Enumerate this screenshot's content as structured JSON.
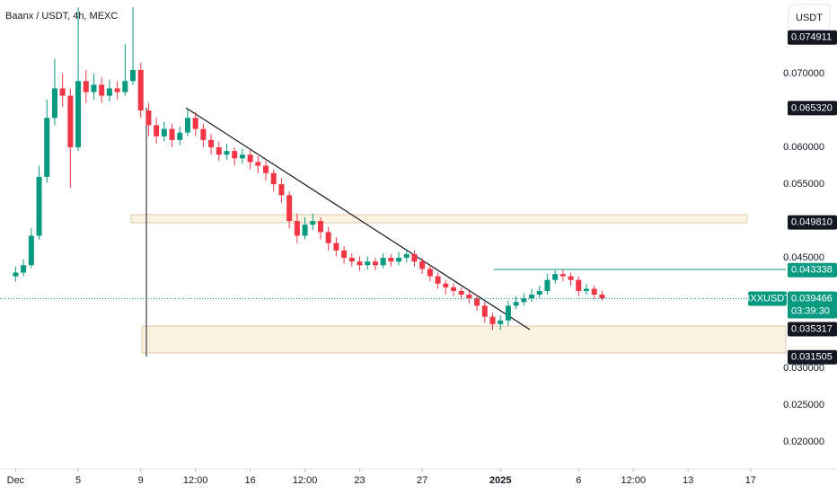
{
  "chart_data": {
    "type": "candlestick",
    "title": "Baanx / USDT, 4h, MEXC",
    "currency_button": "USDT",
    "up_color": "#089981",
    "down_color": "#f23645",
    "x": [
      "2024-12-01T00:00",
      "2024-12-01T12:00",
      "2024-12-02T00:00",
      "2024-12-02T12:00",
      "2024-12-03T00:00",
      "2024-12-03T12:00",
      "2024-12-04T00:00",
      "2024-12-04T12:00",
      "2024-12-05T00:00",
      "2024-12-05T12:00",
      "2024-12-06T00:00",
      "2024-12-06T12:00",
      "2024-12-07T00:00",
      "2024-12-07T12:00",
      "2024-12-08T00:00",
      "2024-12-08T12:00",
      "2024-12-09T00:00",
      "2024-12-09T12:00",
      "2024-12-10T00:00",
      "2024-12-10T12:00",
      "2024-12-11T00:00",
      "2024-12-11T12:00",
      "2024-12-12T00:00",
      "2024-12-12T12:00",
      "2024-12-13T00:00",
      "2024-12-13T12:00",
      "2024-12-14T00:00",
      "2024-12-14T12:00",
      "2024-12-15T00:00",
      "2024-12-15T12:00",
      "2024-12-16T00:00",
      "2024-12-16T12:00",
      "2024-12-17T00:00",
      "2024-12-17T12:00",
      "2024-12-18T00:00",
      "2024-12-18T12:00",
      "2024-12-19T00:00",
      "2024-12-19T12:00",
      "2024-12-20T00:00",
      "2024-12-20T12:00",
      "2024-12-21T00:00",
      "2024-12-21T12:00",
      "2024-12-22T00:00",
      "2024-12-22T12:00",
      "2024-12-23T00:00",
      "2024-12-23T12:00",
      "2024-12-24T00:00",
      "2024-12-24T12:00",
      "2024-12-25T00:00",
      "2024-12-25T12:00",
      "2024-12-26T00:00",
      "2024-12-26T12:00",
      "2024-12-27T00:00",
      "2024-12-27T12:00",
      "2024-12-28T00:00",
      "2024-12-28T12:00",
      "2024-12-29T00:00",
      "2024-12-29T12:00",
      "2024-12-30T00:00",
      "2024-12-30T12:00",
      "2024-12-31T00:00",
      "2024-12-31T12:00",
      "2025-01-01T00:00",
      "2025-01-01T12:00",
      "2025-01-02T00:00",
      "2025-01-02T12:00",
      "2025-01-03T00:00",
      "2025-01-03T12:00",
      "2025-01-04T00:00",
      "2025-01-04T12:00",
      "2025-01-05T00:00",
      "2025-01-05T12:00",
      "2025-01-06T00:00",
      "2025-01-06T12:00",
      "2025-01-07T00:00",
      "2025-01-07T12:00"
    ],
    "open": [
      0.0425,
      0.043,
      0.044,
      0.048,
      0.056,
      0.064,
      0.068,
      0.067,
      0.06,
      0.069,
      0.0675,
      0.0685,
      0.067,
      0.068,
      0.0675,
      0.069,
      0.0705,
      0.065,
      0.063,
      0.0615,
      0.0625,
      0.061,
      0.062,
      0.064,
      0.0625,
      0.061,
      0.06,
      0.059,
      0.0595,
      0.0585,
      0.059,
      0.058,
      0.0575,
      0.0565,
      0.055,
      0.0535,
      0.05,
      0.048,
      0.0495,
      0.05,
      0.0485,
      0.047,
      0.046,
      0.045,
      0.0445,
      0.044,
      0.0445,
      0.044,
      0.045,
      0.0445,
      0.045,
      0.0455,
      0.0445,
      0.0435,
      0.0425,
      0.0415,
      0.041,
      0.0405,
      0.04,
      0.0395,
      0.0385,
      0.037,
      0.036,
      0.0365,
      0.0385,
      0.039,
      0.0395,
      0.04,
      0.0405,
      0.042,
      0.0428,
      0.0425,
      0.042,
      0.0405,
      0.0408,
      0.04
    ],
    "high": [
      0.0438,
      0.0448,
      0.049,
      0.0575,
      0.0665,
      0.072,
      0.07,
      0.068,
      0.079,
      0.0705,
      0.07,
      0.0695,
      0.0692,
      0.069,
      0.074,
      0.079,
      0.0715,
      0.066,
      0.064,
      0.0635,
      0.0632,
      0.0628,
      0.0652,
      0.0648,
      0.0632,
      0.0618,
      0.0608,
      0.0605,
      0.06,
      0.0598,
      0.0596,
      0.0588,
      0.0582,
      0.057,
      0.0558,
      0.054,
      0.051,
      0.0505,
      0.051,
      0.0505,
      0.0492,
      0.0478,
      0.0466,
      0.0456,
      0.0452,
      0.0452,
      0.045,
      0.0456,
      0.0455,
      0.0458,
      0.0462,
      0.046,
      0.045,
      0.044,
      0.043,
      0.042,
      0.0415,
      0.041,
      0.0405,
      0.04,
      0.039,
      0.0375,
      0.0372,
      0.0392,
      0.0398,
      0.0402,
      0.0408,
      0.0412,
      0.0428,
      0.0433,
      0.0434,
      0.043,
      0.0425,
      0.0415,
      0.0412,
      0.0405
    ],
    "low": [
      0.0418,
      0.0425,
      0.0436,
      0.0475,
      0.0552,
      0.063,
      0.0655,
      0.0545,
      0.0595,
      0.066,
      0.0665,
      0.066,
      0.0662,
      0.0665,
      0.067,
      0.0685,
      0.064,
      0.0615,
      0.0605,
      0.0608,
      0.06,
      0.0603,
      0.0615,
      0.0615,
      0.06,
      0.059,
      0.0582,
      0.0583,
      0.0575,
      0.0578,
      0.057,
      0.0565,
      0.0555,
      0.054,
      0.0525,
      0.049,
      0.047,
      0.0475,
      0.0488,
      0.0475,
      0.046,
      0.0452,
      0.0442,
      0.0438,
      0.0432,
      0.0434,
      0.0433,
      0.0436,
      0.0438,
      0.044,
      0.0444,
      0.0438,
      0.0428,
      0.0418,
      0.0408,
      0.04,
      0.0398,
      0.0393,
      0.0388,
      0.0378,
      0.0362,
      0.0352,
      0.0352,
      0.0358,
      0.038,
      0.0385,
      0.039,
      0.0396,
      0.04,
      0.0415,
      0.0418,
      0.0412,
      0.0398,
      0.04,
      0.0394,
      0.0392
    ],
    "close": [
      0.043,
      0.044,
      0.048,
      0.056,
      0.064,
      0.068,
      0.067,
      0.06,
      0.069,
      0.0675,
      0.0685,
      0.067,
      0.068,
      0.0675,
      0.069,
      0.0705,
      0.065,
      0.063,
      0.0615,
      0.0625,
      0.061,
      0.062,
      0.064,
      0.0625,
      0.061,
      0.06,
      0.059,
      0.0595,
      0.0585,
      0.059,
      0.058,
      0.0575,
      0.0565,
      0.055,
      0.0535,
      0.05,
      0.048,
      0.0495,
      0.05,
      0.0485,
      0.047,
      0.046,
      0.045,
      0.0445,
      0.044,
      0.0445,
      0.044,
      0.045,
      0.0445,
      0.045,
      0.0455,
      0.0445,
      0.0435,
      0.0425,
      0.0415,
      0.041,
      0.0405,
      0.04,
      0.0395,
      0.0385,
      0.037,
      0.036,
      0.0365,
      0.0385,
      0.039,
      0.0395,
      0.04,
      0.0405,
      0.042,
      0.0428,
      0.0425,
      0.042,
      0.0405,
      0.0408,
      0.04,
      0.0395
    ],
    "xlim": [
      "2024-11-30T00:00",
      "2025-01-19T06:00"
    ],
    "xticks": [
      {
        "value": "2024-12-01T00:00",
        "label": "Dec"
      },
      {
        "value": "2024-12-05T00:00",
        "label": "5"
      },
      {
        "value": "2024-12-09T00:00",
        "label": "9"
      },
      {
        "value": "2024-12-12T12:00",
        "label": "12:00"
      },
      {
        "value": "2024-12-16T00:00",
        "label": "16"
      },
      {
        "value": "2024-12-19T12:00",
        "label": "12:00"
      },
      {
        "value": "2024-12-23T00:00",
        "label": "23"
      },
      {
        "value": "2024-12-27T00:00",
        "label": "27"
      },
      {
        "value": "2025-01-01T00:00",
        "label": "2025"
      },
      {
        "value": "2025-01-06T00:00",
        "label": "6"
      },
      {
        "value": "2025-01-09T12:00",
        "label": "12:00"
      },
      {
        "value": "2025-01-13T00:00",
        "label": "13"
      },
      {
        "value": "2025-01-17T00:00",
        "label": "17"
      }
    ],
    "ylim": [
      0.0166,
      0.08
    ],
    "yticks": [
      {
        "value": 0.07,
        "label": "0.070000"
      },
      {
        "value": 0.06,
        "label": "0.060000"
      },
      {
        "value": 0.055,
        "label": "0.055000"
      },
      {
        "value": 0.045,
        "label": "0.045000"
      },
      {
        "value": 0.03,
        "label": "0.030000"
      },
      {
        "value": 0.025,
        "label": "0.025000"
      },
      {
        "value": 0.02,
        "label": "0.020000"
      }
    ],
    "price_labels": [
      {
        "value": 0.074911,
        "label": "0.074911",
        "color": "#131722"
      },
      {
        "value": 0.06532,
        "label": "0.065320",
        "color": "#131722"
      },
      {
        "value": 0.04981,
        "label": "0.049810",
        "color": "#131722"
      },
      {
        "value": 0.043338,
        "label": "0.043338",
        "color": "#089981"
      },
      {
        "value": 0.035317,
        "label": "0.035317",
        "color": "#131722"
      },
      {
        "value": 0.031505,
        "label": "0.031505",
        "color": "#131722"
      }
    ],
    "current_price": {
      "value": 0.039466,
      "label": "0.039466",
      "symbol": "BXXUSDT",
      "countdown": "03:39:30",
      "color": "#089981"
    }
  }
}
